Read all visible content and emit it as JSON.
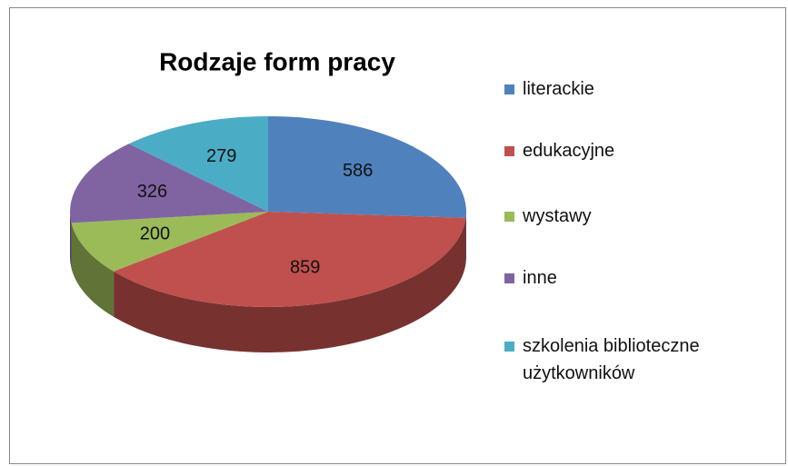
{
  "chart_data": {
    "type": "pie3d",
    "title": "Rodzaje form pracy",
    "categories": [
      "literackie",
      "edukacyjne",
      "wystawy",
      "inne",
      "szkolenia biblioteczne użytkowników"
    ],
    "values": [
      586,
      859,
      200,
      326,
      279
    ],
    "colors": [
      "#4f81bd",
      "#c0504d",
      "#9bbb59",
      "#8064a2",
      "#4bacc6"
    ],
    "legend": "right"
  }
}
